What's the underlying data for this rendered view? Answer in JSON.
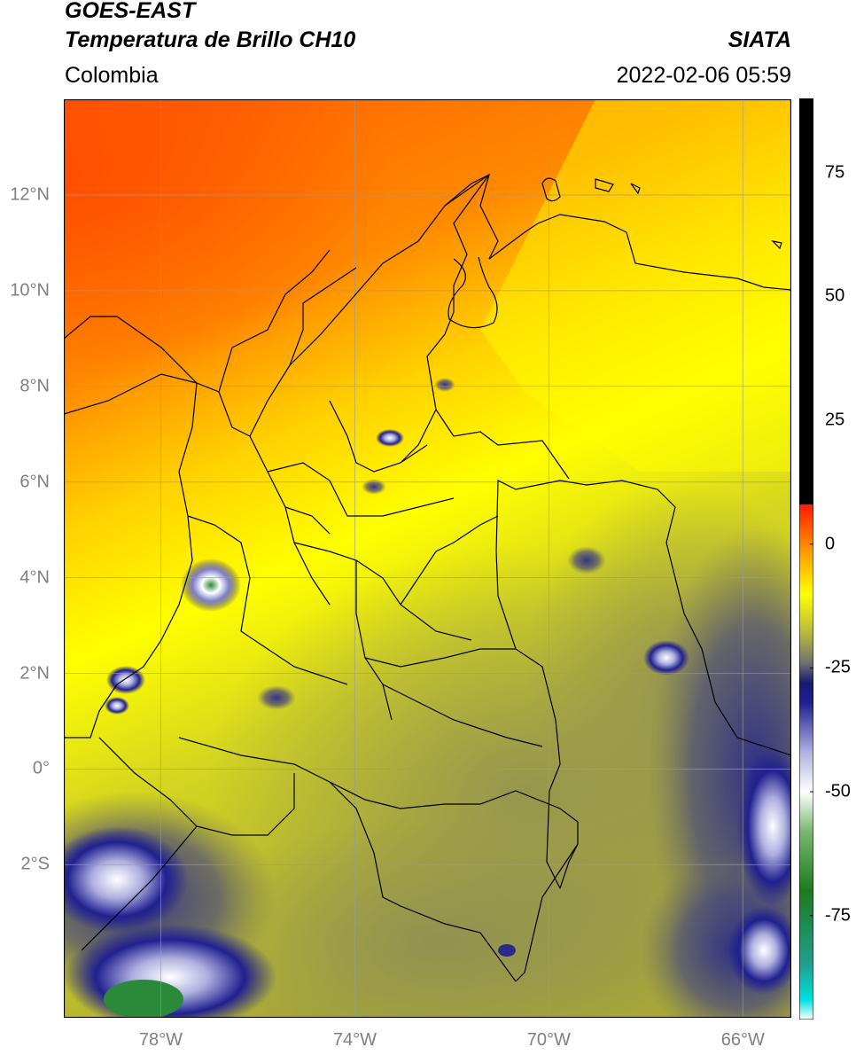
{
  "header": {
    "line1": "GOES-EAST",
    "line2": "Temperatura de Brillo CH10",
    "region": "Colombia",
    "brand": "SIATA",
    "timestamp": "2022-02-06 05:59"
  },
  "lat_ticks": [
    {
      "label": "12°N",
      "value": 12
    },
    {
      "label": "10°N",
      "value": 10
    },
    {
      "label": "8°N",
      "value": 8
    },
    {
      "label": "6°N",
      "value": 6
    },
    {
      "label": "4°N",
      "value": 4
    },
    {
      "label": "2°N",
      "value": 2
    },
    {
      "label": "0°",
      "value": 0
    },
    {
      "label": "2°S",
      "value": -2
    }
  ],
  "lon_ticks": [
    {
      "label": "78°W",
      "value": -78
    },
    {
      "label": "74°W",
      "value": -74
    },
    {
      "label": "70°W",
      "value": -70
    },
    {
      "label": "66°W",
      "value": -66
    }
  ],
  "extent": {
    "lon_min": -80,
    "lon_max": -65,
    "lat_min": -5.2,
    "lat_max": 14
  },
  "colorbar": {
    "min": -96,
    "max": 90,
    "ticks": [
      {
        "label": "75",
        "value": 75
      },
      {
        "label": "50",
        "value": 50
      },
      {
        "label": "25",
        "value": 25
      },
      {
        "label": "0",
        "value": 0
      },
      {
        "label": "-25",
        "value": -25
      },
      {
        "label": "-50",
        "value": -50
      },
      {
        "label": "-75",
        "value": -75
      }
    ],
    "colors": [
      {
        "v": -96,
        "c": "#ffffff"
      },
      {
        "v": -92,
        "c": "#00e0e0"
      },
      {
        "v": -85,
        "c": "#20a090"
      },
      {
        "v": -70,
        "c": "#1e7a1e"
      },
      {
        "v": -58,
        "c": "#7ab870"
      },
      {
        "v": -50,
        "c": "#ffffff"
      },
      {
        "v": -42,
        "c": "#b0b0e0"
      },
      {
        "v": -32,
        "c": "#202090"
      },
      {
        "v": -28,
        "c": "#1a1a70"
      },
      {
        "v": -24,
        "c": "#707070"
      },
      {
        "v": -18,
        "c": "#b8b840"
      },
      {
        "v": -10,
        "c": "#ffff00"
      },
      {
        "v": -2,
        "c": "#ffa000"
      },
      {
        "v": 8,
        "c": "#ff1a00"
      },
      {
        "v": 8.01,
        "c": "#000000"
      },
      {
        "v": 90,
        "c": "#000000"
      }
    ]
  }
}
